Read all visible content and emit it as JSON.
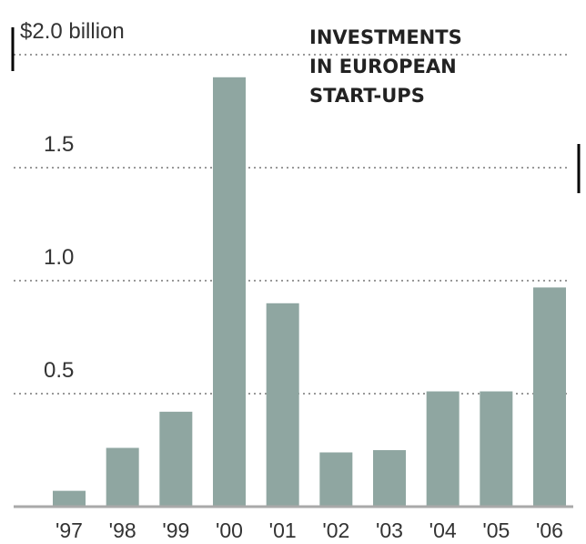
{
  "chart_data": {
    "type": "bar",
    "title_lines": [
      "INVESTMENTS",
      "IN EUROPEAN",
      "START-UPS"
    ],
    "categories": [
      "'97",
      "'98",
      "'99",
      "'00",
      "'01",
      "'02",
      "'03",
      "'04",
      "'05",
      "'06"
    ],
    "values": [
      0.07,
      0.26,
      0.42,
      1.9,
      0.9,
      0.24,
      0.25,
      0.51,
      0.51,
      0.97
    ],
    "ylim": [
      0,
      2.0
    ],
    "y_ticks": [
      {
        "value": 2.0,
        "label": "$2.0 billion"
      },
      {
        "value": 1.5,
        "label": "1.5"
      },
      {
        "value": 1.0,
        "label": "1.0"
      },
      {
        "value": 0.5,
        "label": "0.5"
      }
    ],
    "grid": true,
    "colors": {
      "bar": "#8fa6a1",
      "grid": "#999999",
      "baseline": "#a9a9a9",
      "text": "#333333"
    }
  }
}
